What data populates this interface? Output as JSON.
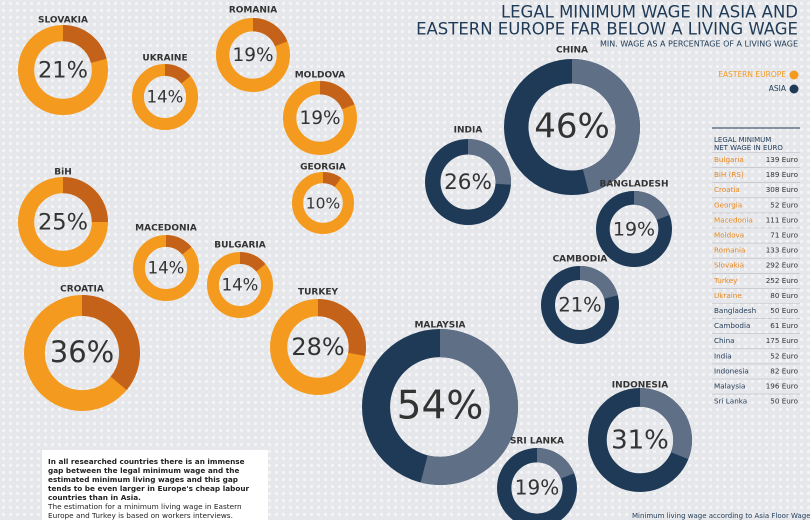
{
  "title": [
    "LEGAL MINIMUM WAGE IN ASIA AND",
    "EASTERN EUROPE FAR BELOW A LIVING WAGE"
  ],
  "subtitle": "MIN. WAGE AS A PERCENTAGE OF A LIVING WAGE",
  "legend": [
    {
      "name": "EASTERN EUROPE",
      "color": "#f39a1f"
    },
    {
      "name": "ASIA",
      "color": "#1f3a56"
    }
  ],
  "chart_data": [
    {
      "type": "donut",
      "title": "SLOVAKIA",
      "values": [
        21
      ],
      "value_labels": [
        "21%"
      ],
      "colors": [
        "#c4621a",
        "#f39a1f"
      ]
    },
    {
      "type": "donut",
      "title": "UKRAINE",
      "values": [
        14
      ],
      "value_labels": [
        "14%"
      ],
      "colors": [
        "#c4621a",
        "#f39a1f"
      ]
    },
    {
      "type": "donut",
      "title": "ROMANIA",
      "values": [
        19
      ],
      "value_labels": [
        "19%"
      ],
      "colors": [
        "#c4621a",
        "#f39a1f"
      ]
    },
    {
      "type": "donut",
      "title": "MOLDOVA",
      "values": [
        19
      ],
      "value_labels": [
        "19%"
      ],
      "colors": [
        "#c4621a",
        "#f39a1f"
      ]
    },
    {
      "type": "donut",
      "title": "GEORGIA",
      "values": [
        10
      ],
      "value_labels": [
        "10%"
      ],
      "colors": [
        "#c4621a",
        "#f39a1f"
      ]
    },
    {
      "type": "donut",
      "title": "BiH",
      "values": [
        25
      ],
      "value_labels": [
        "25%"
      ],
      "colors": [
        "#c4621a",
        "#f39a1f"
      ]
    },
    {
      "type": "donut",
      "title": "MACEDONIA",
      "values": [
        14
      ],
      "value_labels": [
        "14%"
      ],
      "colors": [
        "#c4621a",
        "#f39a1f"
      ]
    },
    {
      "type": "donut",
      "title": "BULGARIA",
      "values": [
        14
      ],
      "value_labels": [
        "14%"
      ],
      "colors": [
        "#c4621a",
        "#f39a1f"
      ]
    },
    {
      "type": "donut",
      "title": "CROATIA",
      "values": [
        36
      ],
      "value_labels": [
        "36%"
      ],
      "colors": [
        "#c4621a",
        "#f39a1f"
      ]
    },
    {
      "type": "donut",
      "title": "TURKEY",
      "values": [
        28
      ],
      "value_labels": [
        "28%"
      ],
      "colors": [
        "#c4621a",
        "#f39a1f"
      ]
    },
    {
      "type": "donut",
      "title": "CHINA",
      "values": [
        46
      ],
      "value_labels": [
        "46%"
      ],
      "colors": [
        "#5e6f86",
        "#1f3a56"
      ]
    },
    {
      "type": "donut",
      "title": "INDIA",
      "values": [
        26
      ],
      "value_labels": [
        "26%"
      ],
      "colors": [
        "#5e6f86",
        "#1f3a56"
      ]
    },
    {
      "type": "donut",
      "title": "BANGLADESH",
      "values": [
        19
      ],
      "value_labels": [
        "19%"
      ],
      "colors": [
        "#5e6f86",
        "#1f3a56"
      ]
    },
    {
      "type": "donut",
      "title": "CAMBODIA",
      "values": [
        21
      ],
      "value_labels": [
        "21%"
      ],
      "colors": [
        "#5e6f86",
        "#1f3a56"
      ]
    },
    {
      "type": "donut",
      "title": "MALAYSIA",
      "values": [
        54
      ],
      "value_labels": [
        "54%"
      ],
      "colors": [
        "#5e6f86",
        "#1f3a56"
      ]
    },
    {
      "type": "donut",
      "title": "INDONESIA",
      "values": [
        31
      ],
      "value_labels": [
        "31%"
      ],
      "colors": [
        "#5e6f86",
        "#1f3a56"
      ]
    },
    {
      "type": "donut",
      "title": "SRI LANKA",
      "values": [
        19
      ],
      "value_labels": [
        "19%"
      ],
      "colors": [
        "#5e6f86",
        "#1f3a56"
      ]
    }
  ],
  "table": {
    "title": "LEGAL MINIMUM NET WAGE IN EURO",
    "rows": [
      [
        "Bulgaria",
        "139 Euro"
      ],
      [
        "BiH (RS)",
        "189 Euro"
      ],
      [
        "Croatia",
        "308 Euro"
      ],
      [
        "Georgia",
        "52 Euro"
      ],
      [
        "Macedonia",
        "111 Euro"
      ],
      [
        "Moldova",
        "71 Euro"
      ],
      [
        "Romania",
        "133 Euro"
      ],
      [
        "Slovakia",
        "292 Euro"
      ],
      [
        "Turkey",
        "252 Euro"
      ],
      [
        "Ukraine",
        "80 Euro"
      ],
      [
        "Bangladesh",
        "50 Euro"
      ],
      [
        "Cambodia",
        "61 Euro"
      ],
      [
        "China",
        "175 Euro"
      ],
      [
        "India",
        "52 Euro"
      ],
      [
        "Indonesia",
        "82 Euro"
      ],
      [
        "Malaysia",
        "196 Euro"
      ],
      [
        "Sri Lanka",
        "50 Euro"
      ]
    ],
    "row_colors": [
      "#e8871c",
      "#e8871c",
      "#e8871c",
      "#e8871c",
      "#e8871c",
      "#e8871c",
      "#e8871c",
      "#e8871c",
      "#e8871c",
      "#e8871c",
      "#1f3a56",
      "#1f3a56",
      "#1f3a56",
      "#1f3a56",
      "#1f3a56",
      "#1f3a56",
      "#1f3a56"
    ]
  },
  "note": {
    "lead": "In all researched countries there is an immense gap between the legal minimum wage and the estimated minimum living wages and this gap tends to be even larger in Europe's cheap labour countries than in Asia.",
    "text": "The estimation for a minimum living wage in Eastern Europe and Turkey is based on workers interviews. Workers were questioned on household expenditures."
  },
  "footer": "Minimum living wage according to Asia Floor Wage"
}
